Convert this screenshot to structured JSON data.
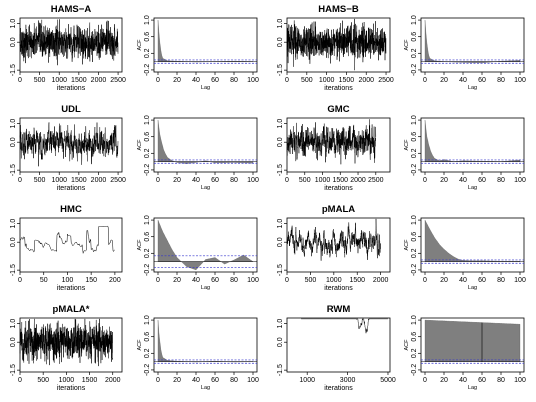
{
  "figure": {
    "panels": [
      {
        "id": "hams-a",
        "title": "HAMS−A",
        "trace": {
          "n": 2500,
          "amp": 0.45,
          "rho": 0.0,
          "y": null,
          "xticks": [
            0,
            500,
            1000,
            1500,
            2000,
            2500
          ],
          "xlabel": "iterations",
          "yticks": [
            "-1.5",
            "0.0",
            "1.0"
          ]
        },
        "acf": {
          "kind": "fast",
          "yticks": [
            "-0.2",
            "0.2",
            "0.6",
            "1.0"
          ],
          "xticks": [
            0,
            20,
            40,
            60,
            80,
            100
          ],
          "ylabel": "ACF",
          "xlabel": "Lag"
        }
      },
      {
        "id": "hams-b",
        "title": "HAMS−B",
        "trace": {
          "n": 2500,
          "amp": 0.45,
          "rho": 0.0,
          "y": null,
          "xticks": [
            0,
            500,
            1000,
            1500,
            2000,
            2500
          ],
          "xlabel": "iterations",
          "yticks": [
            "-1.5",
            "0.0",
            "1.0"
          ]
        },
        "acf": {
          "kind": "fast",
          "yticks": [
            "-0.2",
            "0.2",
            "0.6",
            "1.0"
          ],
          "xticks": [
            0,
            20,
            40,
            60,
            80,
            100
          ],
          "ylabel": "ACF",
          "xlabel": "Lag"
        }
      },
      {
        "id": "udl",
        "title": "UDL",
        "trace": {
          "n": 2500,
          "amp": 0.4,
          "rho": 0.55,
          "y": null,
          "xticks": [
            0,
            500,
            1000,
            1500,
            2000,
            2500
          ],
          "xlabel": "iterations",
          "yticks": [
            "-1.5",
            "0.0",
            "1.0"
          ]
        },
        "acf": {
          "kind": "medium",
          "yticks": [
            "-0.2",
            "0.2",
            "0.6",
            "1.0"
          ],
          "xticks": [
            0,
            20,
            40,
            60,
            80,
            100
          ],
          "ylabel": "ACF",
          "xlabel": "Lag"
        }
      },
      {
        "id": "gmc",
        "title": "GMC",
        "trace": {
          "n": 2500,
          "amp": 0.4,
          "rho": 0.5,
          "y": null,
          "xticks": [
            0,
            500,
            1000,
            1500,
            2000,
            2500
          ],
          "xlabel": "iterations",
          "yticks": [
            "-1.5",
            "0.0",
            "1.0"
          ]
        },
        "acf": {
          "kind": "medium",
          "yticks": [
            "-0.2",
            "0.2",
            "0.6",
            "1.0"
          ],
          "xticks": [
            0,
            20,
            40,
            60,
            80,
            100
          ],
          "ylabel": "ACF",
          "xlabel": "Lag"
        }
      },
      {
        "id": "hmc",
        "title": "HMC",
        "trace": {
          "n": 200,
          "amp": 0.7,
          "rho": 0.95,
          "y": null,
          "xticks": [
            0,
            50,
            100,
            150,
            200
          ],
          "xlabel": "iterations",
          "yticks": [
            "-1.5",
            "0.0",
            "1.0"
          ]
        },
        "acf": {
          "kind": "slow-osc",
          "yticks": [
            "-0.2",
            "0.2",
            "0.6",
            "1.0"
          ],
          "xticks": [
            0,
            20,
            40,
            60,
            80,
            100
          ],
          "ylabel": "ACF",
          "xlabel": "Lag"
        }
      },
      {
        "id": "pmala",
        "title": "pMALA",
        "trace": {
          "n": 2000,
          "amp": 0.35,
          "rho": 0.85,
          "y": null,
          "xticks": [
            0,
            500,
            1000,
            1500,
            2000
          ],
          "xlabel": "iterations",
          "yticks": [
            "-1.5",
            "0.0",
            "1.0"
          ]
        },
        "acf": {
          "kind": "slow",
          "yticks": [
            "-0.2",
            "0.2",
            "0.6",
            "1.0"
          ],
          "xticks": [
            0,
            20,
            40,
            60,
            80,
            100
          ],
          "ylabel": "ACF",
          "xlabel": "Lag"
        }
      },
      {
        "id": "pmala-star",
        "title": "pMALA*",
        "trace": {
          "n": 2000,
          "amp": 0.45,
          "rho": 0.1,
          "y": null,
          "xticks": [
            0,
            500,
            1000,
            1500,
            2000
          ],
          "xlabel": "iterations",
          "yticks": [
            "-1.5",
            "0.0",
            "1.0"
          ]
        },
        "acf": {
          "kind": "fast",
          "yticks": [
            "-0.2",
            "0.2",
            "0.6",
            "1.0"
          ],
          "xticks": [
            0,
            20,
            40,
            60,
            80,
            100
          ],
          "ylabel": "ACF",
          "xlabel": "Lag"
        }
      },
      {
        "id": "rwm",
        "title": "RWM",
        "trace": {
          "n": 5000,
          "amp": 0.1,
          "rho": 0.999,
          "y": null,
          "xticks": [
            1000,
            3000,
            5000
          ],
          "xlabel": "iterations",
          "yticks": [
            "-1.5",
            "0.0",
            "1.0"
          ]
        },
        "acf": {
          "kind": "flat",
          "yticks": [
            "-0.2",
            "0.2",
            "0.6",
            "1.0"
          ],
          "xticks": [
            0,
            20,
            40,
            60,
            80,
            100
          ],
          "ylabel": "ACF",
          "xlabel": "Lag"
        }
      }
    ]
  },
  "chart_data": [
    {
      "type": "line",
      "title": "HAMS−A",
      "xlabel": "iterations",
      "xlim": [
        0,
        2600
      ],
      "ylim": [
        -1.6,
        1.3
      ],
      "series": [
        {
          "name": "trace",
          "x": [
            0,
            2600
          ],
          "y": null
        }
      ]
    },
    {
      "type": "bar",
      "title": "",
      "xlabel": "Lag",
      "ylabel": "ACF",
      "x": [
        0,
        1,
        2,
        3,
        4,
        5,
        10,
        20,
        40,
        60,
        80,
        100
      ],
      "values": [
        1.0,
        0.72,
        0.45,
        0.28,
        0.15,
        0.08,
        0.02,
        0.01,
        -0.01,
        0.0,
        0.01,
        0.0
      ],
      "ylim": [
        -0.25,
        1.05
      ]
    },
    {
      "type": "line",
      "title": "HAMS−B",
      "xlabel": "iterations",
      "xlim": [
        0,
        2600
      ],
      "ylim": [
        -1.6,
        1.3
      ],
      "series": [
        {
          "name": "trace",
          "x": [
            0,
            2600
          ],
          "y": null
        }
      ]
    },
    {
      "type": "bar",
      "title": "",
      "xlabel": "Lag",
      "ylabel": "ACF",
      "x": [
        0,
        1,
        2,
        3,
        4,
        5,
        10,
        20,
        40,
        60,
        80,
        100
      ],
      "values": [
        1.0,
        0.7,
        0.45,
        0.27,
        0.15,
        0.08,
        0.02,
        0.0,
        -0.02,
        -0.03,
        0.01,
        0.03
      ],
      "ylim": [
        -0.25,
        1.05
      ]
    },
    {
      "type": "line",
      "title": "UDL",
      "xlabel": "iterations",
      "xlim": [
        0,
        2600
      ],
      "ylim": [
        -1.6,
        1.3
      ],
      "series": [
        {
          "name": "trace",
          "x": [
            0,
            2600
          ],
          "y": null
        }
      ]
    },
    {
      "type": "bar",
      "title": "",
      "xlabel": "Lag",
      "ylabel": "ACF",
      "x": [
        0,
        2,
        4,
        6,
        8,
        10,
        15,
        20,
        30,
        40,
        50,
        60,
        80,
        100
      ],
      "values": [
        1.0,
        0.65,
        0.45,
        0.28,
        0.18,
        0.1,
        0.02,
        -0.02,
        -0.05,
        -0.02,
        0.02,
        -0.03,
        -0.02,
        -0.04
      ],
      "ylim": [
        -0.25,
        1.05
      ]
    },
    {
      "type": "line",
      "title": "GMC",
      "xlabel": "iterations",
      "xlim": [
        0,
        2900
      ],
      "ylim": [
        -1.6,
        1.3
      ],
      "series": [
        {
          "name": "trace",
          "x": [
            0,
            2900
          ],
          "y": null
        }
      ]
    },
    {
      "type": "bar",
      "title": "",
      "xlabel": "Lag",
      "ylabel": "ACF",
      "x": [
        0,
        2,
        4,
        6,
        8,
        10,
        15,
        20,
        30,
        40,
        60,
        80,
        100
      ],
      "values": [
        1.0,
        0.6,
        0.4,
        0.25,
        0.15,
        0.08,
        0.02,
        0.05,
        0.0,
        0.02,
        0.01,
        0.0,
        0.04
      ],
      "ylim": [
        -0.25,
        1.05
      ]
    },
    {
      "type": "line",
      "title": "HMC",
      "xlabel": "iterations",
      "xlim": [
        0,
        215
      ],
      "ylim": [
        -1.6,
        1.3
      ],
      "series": [
        {
          "name": "trace",
          "x": [
            0,
            215
          ],
          "y": null
        }
      ]
    },
    {
      "type": "bar",
      "title": "",
      "xlabel": "Lag",
      "ylabel": "ACF",
      "x": [
        0,
        5,
        10,
        15,
        20,
        30,
        40,
        50,
        60,
        70,
        80,
        90,
        100
      ],
      "values": [
        1.0,
        0.72,
        0.5,
        0.28,
        0.1,
        -0.12,
        -0.2,
        0.05,
        0.1,
        -0.06,
        0.04,
        0.16,
        0.0
      ],
      "ylim": [
        -0.25,
        1.05
      ]
    },
    {
      "type": "line",
      "title": "pMALA",
      "xlabel": "iterations",
      "xlim": [
        0,
        2200
      ],
      "ylim": [
        -1.6,
        1.3
      ],
      "series": [
        {
          "name": "trace",
          "x": [
            0,
            2200
          ],
          "y": null
        }
      ]
    },
    {
      "type": "bar",
      "title": "",
      "xlabel": "Lag",
      "ylabel": "ACF",
      "x": [
        0,
        5,
        10,
        15,
        20,
        25,
        30,
        35,
        40,
        50,
        60,
        80,
        100
      ],
      "values": [
        1.0,
        0.78,
        0.58,
        0.42,
        0.3,
        0.2,
        0.12,
        0.06,
        0.03,
        0.02,
        0.02,
        0.01,
        0.01
      ],
      "ylim": [
        -0.25,
        1.05
      ]
    },
    {
      "type": "line",
      "title": "pMALA*",
      "xlabel": "iterations",
      "xlim": [
        0,
        2200
      ],
      "ylim": [
        -1.6,
        1.3
      ],
      "series": [
        {
          "name": "trace",
          "x": [
            0,
            2200
          ],
          "y": null
        }
      ]
    },
    {
      "type": "bar",
      "title": "",
      "xlabel": "Lag",
      "ylabel": "ACF",
      "x": [
        0,
        1,
        2,
        3,
        4,
        5,
        10,
        20,
        40,
        60,
        80,
        100
      ],
      "values": [
        1.0,
        0.7,
        0.48,
        0.3,
        0.18,
        0.1,
        0.03,
        0.01,
        -0.01,
        0.01,
        -0.01,
        0.0
      ],
      "ylim": [
        -0.25,
        1.05
      ]
    },
    {
      "type": "line",
      "title": "RWM",
      "xlabel": "iterations",
      "xlim": [
        0,
        5100
      ],
      "ylim": [
        -1.6,
        1.3
      ],
      "series": [
        {
          "name": "trace",
          "x": [
            0,
            5100
          ],
          "y": null
        }
      ]
    },
    {
      "type": "bar",
      "title": "",
      "xlabel": "Lag",
      "ylabel": "ACF",
      "x": [
        0,
        20,
        40,
        60,
        80,
        100
      ],
      "values": [
        1.0,
        0.98,
        0.96,
        0.94,
        0.92,
        0.9
      ],
      "ylim": [
        -0.25,
        1.05
      ]
    }
  ]
}
